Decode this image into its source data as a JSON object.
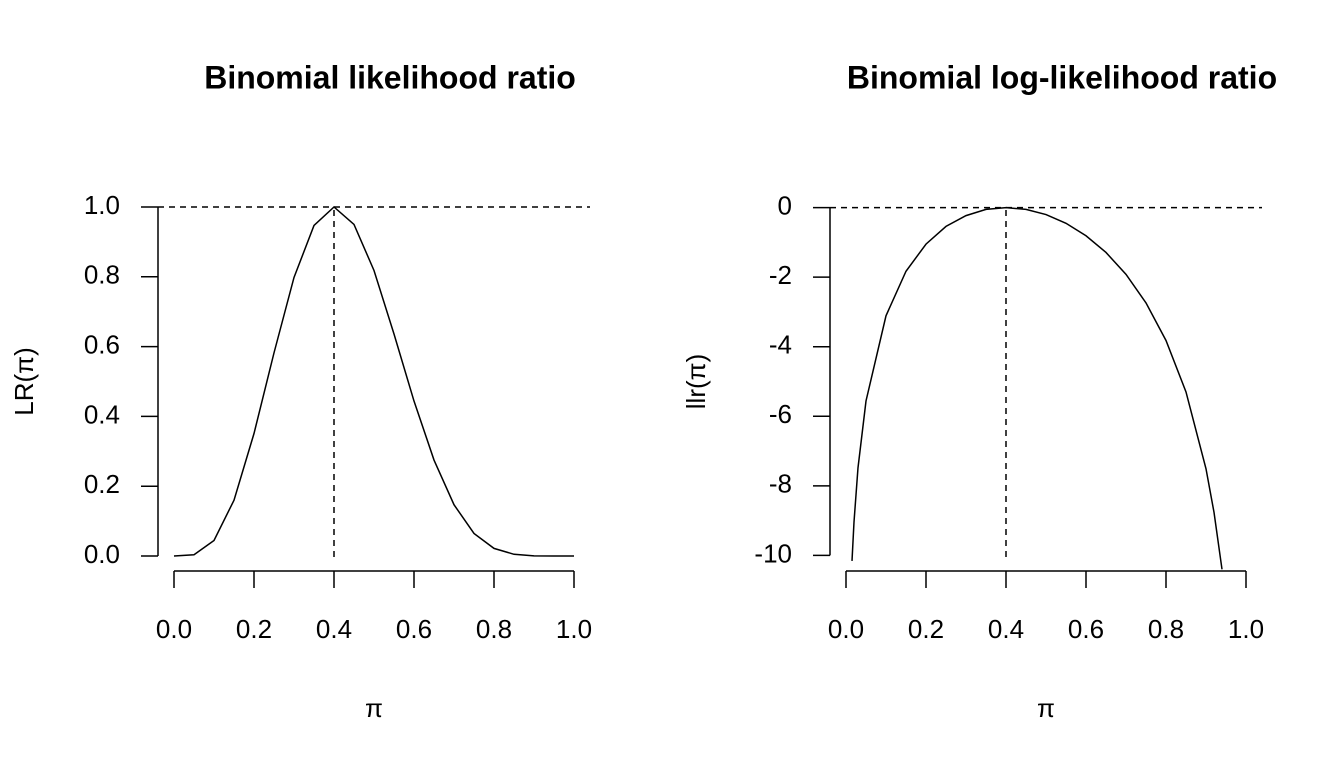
{
  "chart_data": [
    {
      "type": "line",
      "title": "Binomial likelihood ratio",
      "xlabel": "π",
      "ylabel": "LR(π)",
      "x": [
        0,
        0.05,
        0.1,
        0.15,
        0.2,
        0.25,
        0.3,
        0.35,
        0.4,
        0.45,
        0.5,
        0.55,
        0.6,
        0.65,
        0.7,
        0.75,
        0.8,
        0.85,
        0.9,
        0.95,
        1
      ],
      "values": [
        0,
        0.0038,
        0.0445,
        0.16,
        0.351,
        0.582,
        0.798,
        0.947,
        1,
        0.95,
        0.818,
        0.636,
        0.444,
        0.275,
        0.147,
        0.0646,
        0.0219,
        0.005,
        0.0006,
        0,
        0
      ],
      "color": "#000000",
      "xlim": [
        -0.04,
        1.04
      ],
      "ylim": [
        -0.04,
        1.04
      ],
      "xticks": [
        {
          "value": 0,
          "label": "0.0"
        },
        0.2,
        0.4,
        0.6,
        0.8,
        {
          "value": 1,
          "label": "1.0"
        }
      ],
      "yticks": [
        {
          "value": 0,
          "label": "0.0"
        },
        0.2,
        0.4,
        0.6,
        0.8,
        {
          "value": 1,
          "label": "1.0"
        }
      ],
      "reference_lines": {
        "y": 1,
        "x": 0.4
      }
    },
    {
      "type": "line",
      "title": "Binomial log-likelihood ratio",
      "xlabel": "π",
      "ylabel": "llr(π)",
      "x": [
        0.015,
        0.02,
        0.03,
        0.05,
        0.1,
        0.15,
        0.2,
        0.25,
        0.3,
        0.35,
        0.4,
        0.45,
        0.5,
        0.55,
        0.6,
        0.65,
        0.7,
        0.75,
        0.8,
        0.85,
        0.9,
        0.92,
        0.94
      ],
      "values": [
        -10.16,
        -9.04,
        -7.48,
        -5.56,
        -3.11,
        -1.83,
        -1.05,
        -0.54,
        -0.23,
        -0.05,
        0,
        -0.05,
        -0.2,
        -0.45,
        -0.81,
        -1.29,
        -1.92,
        -2.74,
        -3.82,
        -5.3,
        -7.51,
        -8.76,
        -10.4
      ],
      "color": "#000000",
      "xlim": [
        -0.04,
        1.04
      ],
      "ylim": [
        -10.42,
        0.42
      ],
      "xticks": [
        {
          "value": 0,
          "label": "0.0"
        },
        0.2,
        0.4,
        0.6,
        0.8,
        {
          "value": 1,
          "label": "1.0"
        }
      ],
      "yticks": [
        -10,
        -8,
        -6,
        -4,
        -2,
        0
      ],
      "reference_lines": {
        "y": 0,
        "x": 0.4
      }
    }
  ]
}
